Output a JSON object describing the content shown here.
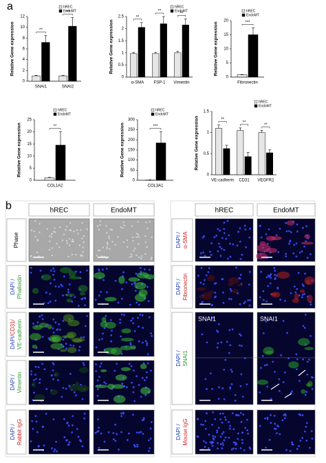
{
  "panel_a": {
    "label": "a"
  },
  "chart_data": [
    {
      "type": "bar",
      "y_label": "Relative Gene expression",
      "categories": [
        "SNAI1",
        "SNAI2"
      ],
      "series": [
        {
          "name": "hREC",
          "color": "#e6e6e6",
          "values": [
            1,
            1
          ],
          "errors": [
            0.1,
            0.1
          ]
        },
        {
          "name": "EndoMT",
          "color": "#000000",
          "values": [
            7.2,
            10.2
          ],
          "errors": [
            1.3,
            1.6
          ]
        }
      ],
      "annotations": [
        "**",
        "***"
      ],
      "ylim": [
        0,
        12
      ],
      "yticks": [
        0,
        2,
        4,
        6,
        8,
        10,
        12
      ]
    },
    {
      "type": "bar",
      "y_label": "Relative Gene expression",
      "categories": [
        "α-SMA",
        "FSP-1",
        "Vimentin"
      ],
      "series": [
        {
          "name": "hREC",
          "color": "#e6e6e6",
          "values": [
            0.97,
            0.97,
            1.0
          ],
          "errors": [
            0.05,
            0.05,
            0.06
          ]
        },
        {
          "name": "EndoMT",
          "color": "#000000",
          "values": [
            2.05,
            2.2,
            2.15
          ],
          "errors": [
            0.2,
            0.3,
            0.25
          ]
        }
      ],
      "annotations": [
        "**",
        "**",
        "**"
      ],
      "ylim": [
        0,
        2.5
      ],
      "yticks": [
        0,
        0.5,
        1,
        1.5,
        2,
        2.5
      ]
    },
    {
      "type": "bar",
      "y_label": "Relative Gene expression",
      "categories": [
        "Fibronectin"
      ],
      "series": [
        {
          "name": "hREC",
          "color": "#e6e6e6",
          "values": [
            0.8
          ],
          "errors": [
            0.1
          ]
        },
        {
          "name": "EndoMT",
          "color": "#000000",
          "values": [
            15
          ],
          "errors": [
            2.5
          ]
        }
      ],
      "annotations": [
        "***"
      ],
      "ylim": [
        0,
        20
      ],
      "yticks": [
        0,
        5,
        10,
        15,
        20
      ]
    },
    {
      "type": "bar",
      "y_label": "Relative Gene expression",
      "categories": [
        "COL1A2"
      ],
      "series": [
        {
          "name": "hREC",
          "color": "#e6e6e6",
          "values": [
            1
          ],
          "errors": [
            0.2
          ]
        },
        {
          "name": "EndoMT",
          "color": "#000000",
          "values": [
            14.5
          ],
          "errors": [
            5.5
          ]
        }
      ],
      "annotations": [
        "**"
      ],
      "ylim": [
        0,
        25
      ],
      "yticks": [
        0,
        5,
        10,
        15,
        20,
        25
      ]
    },
    {
      "type": "bar",
      "y_label": "Relative Gene expression",
      "categories": [
        "COL3A1"
      ],
      "series": [
        {
          "name": "hREC",
          "color": "#e6e6e6",
          "values": [
            1
          ],
          "errors": [
            1
          ]
        },
        {
          "name": "EndoMT",
          "color": "#000000",
          "values": [
            185
          ],
          "errors": [
            55
          ]
        }
      ],
      "annotations": [
        "***"
      ],
      "ylim": [
        0,
        300
      ],
      "yticks": [
        0,
        50,
        100,
        150,
        200,
        250,
        300
      ]
    },
    {
      "type": "bar",
      "y_label": "Relative Gene expression",
      "categories": [
        "VE-cadherin",
        "CD31",
        "VEGFR2"
      ],
      "series": [
        {
          "name": "hREC",
          "color": "#e6e6e6",
          "values": [
            1.1,
            1.05,
            1.0
          ],
          "errors": [
            0.08,
            0.06,
            0.05
          ]
        },
        {
          "name": "EndoMT",
          "color": "#000000",
          "values": [
            0.62,
            0.43,
            0.52
          ],
          "errors": [
            0.08,
            0.1,
            0.07
          ]
        }
      ],
      "annotations": [
        "**",
        "**",
        "**"
      ],
      "ylim": [
        0,
        1.5
      ],
      "yticks": [
        0,
        0.5,
        1,
        1.5
      ]
    }
  ],
  "panel_b": {
    "label": "b",
    "left": {
      "columns": [
        "hREC",
        "EndoMT"
      ],
      "rows": [
        {
          "parts": [
            {
              "text": "Phase",
              "color": "#000000"
            }
          ]
        },
        {
          "parts": [
            {
              "text": "DAPI /",
              "color": "#1f3fbf"
            },
            {
              "text": "Phalloidin",
              "color": "#2e9a2e"
            }
          ]
        },
        {
          "parts": [
            {
              "text": "DAPI/",
              "color": "#1f3fbf"
            },
            {
              "text": "CD31/",
              "color": "#d02020"
            },
            {
              "text": "VE-cadherin",
              "color": "#2e9a2e"
            }
          ]
        },
        {
          "parts": [
            {
              "text": "DAPI /",
              "color": "#1f3fbf"
            },
            {
              "text": "Vimentin",
              "color": "#2e9a2e"
            }
          ]
        },
        {
          "parts": [
            {
              "text": "DAPI /",
              "color": "#1f3fbf"
            },
            {
              "text": "Rabbit IgG",
              "color": "#d02020"
            }
          ]
        }
      ]
    },
    "right": {
      "columns": [
        "hREC",
        "EndoMT"
      ],
      "rows": [
        {
          "parts": [
            {
              "text": "DAPI /",
              "color": "#1f3fbf"
            },
            {
              "text": "α-SMA",
              "color": "#d02020"
            }
          ]
        },
        {
          "parts": [
            {
              "text": "DAPI /",
              "color": "#1f3fbf"
            },
            {
              "text": "Fibronectin",
              "color": "#d02020"
            }
          ]
        },
        {
          "parts": [
            {
              "text": "DAPI /",
              "color": "#1f3fbf"
            },
            {
              "text": "SNAI1",
              "color": "#2e9a2e"
            }
          ]
        },
        {
          "parts": [
            {
              "text": "DAPI /",
              "color": "#1f3fbf"
            },
            {
              "text": "Mouse IgG",
              "color": "#d02020"
            }
          ]
        }
      ],
      "insets": [
        "SNAI1",
        "SNAI1"
      ]
    }
  }
}
